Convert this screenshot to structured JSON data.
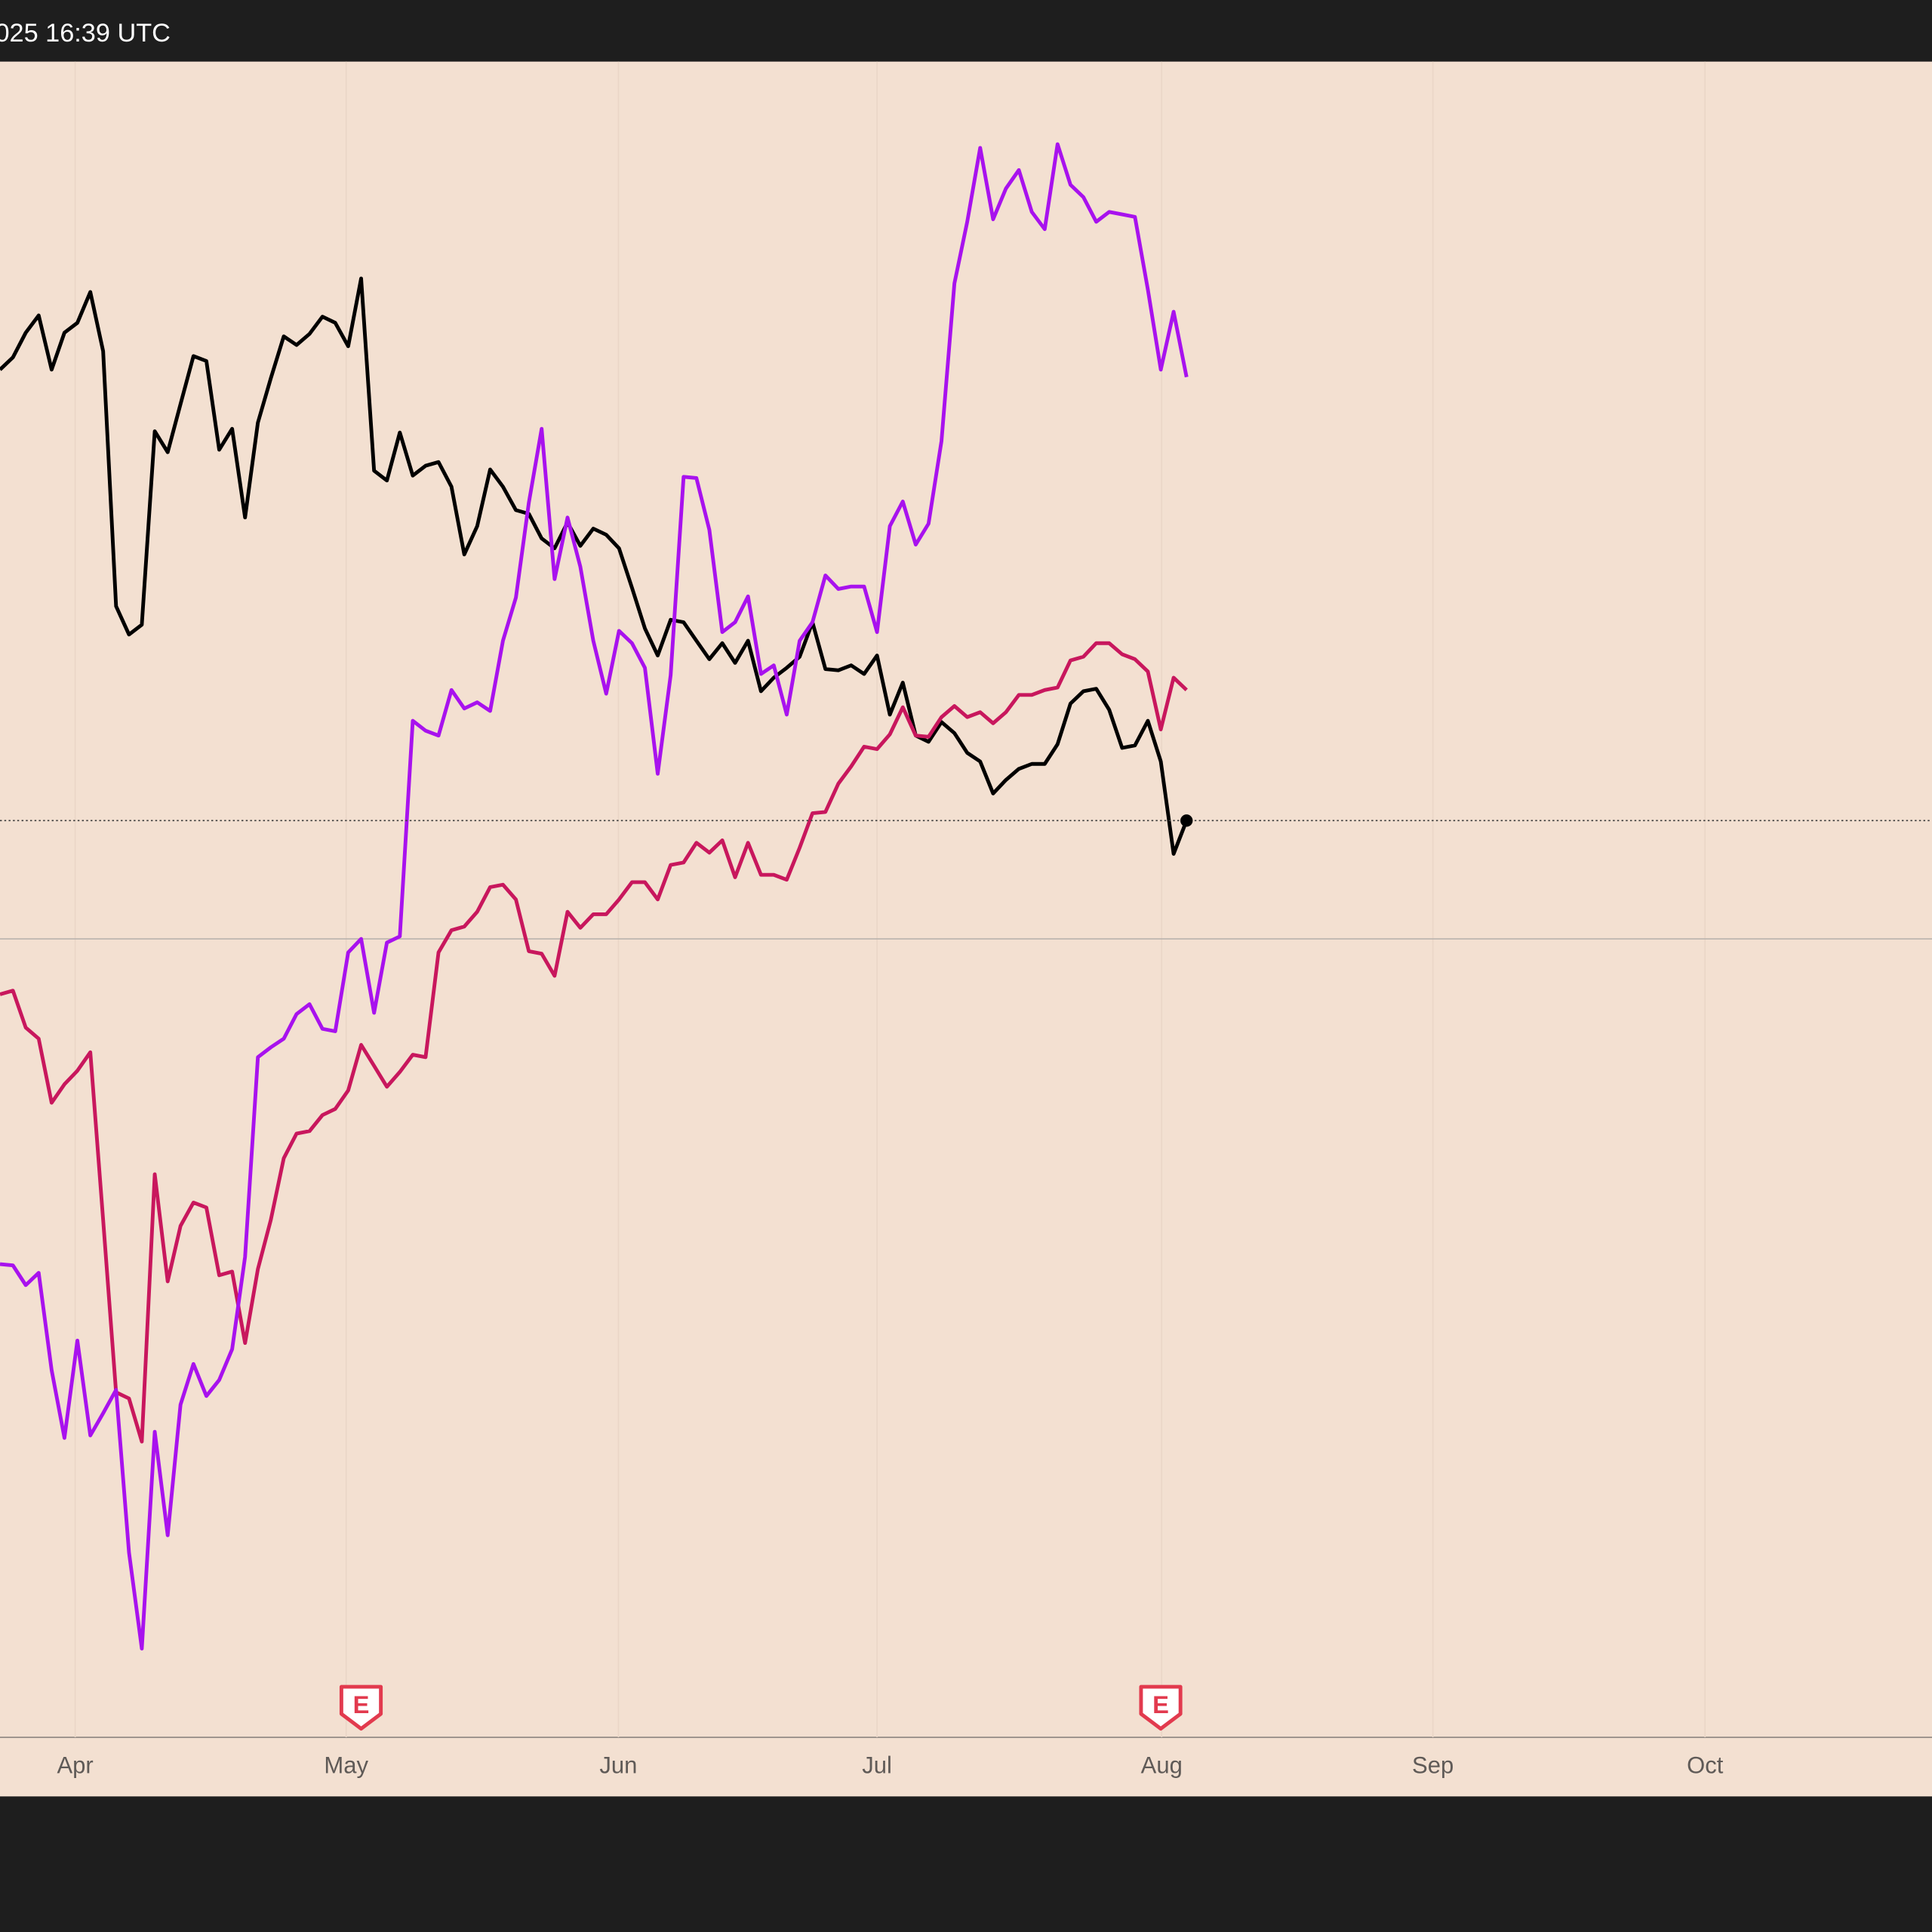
{
  "header": {
    "text": "025 16:39 UTC"
  },
  "chart_data": {
    "type": "line",
    "xlim": [
      0,
      149.8
    ],
    "ylim": [
      -64.8,
      71.2
    ],
    "xticks": [
      {
        "value": 5.83,
        "label": "Apr"
      },
      {
        "value": 26.84,
        "label": "May"
      },
      {
        "value": 47.95,
        "label": "Jun"
      },
      {
        "value": 68.0,
        "label": "Jul"
      },
      {
        "value": 90.07,
        "label": "Aug"
      },
      {
        "value": 111.1,
        "label": "Sep"
      },
      {
        "value": 132.2,
        "label": "Oct"
      }
    ],
    "grid": true,
    "baseline": 0,
    "events": [
      {
        "x": 28,
        "label": "E"
      },
      {
        "x": 90,
        "label": "E"
      }
    ],
    "series": [
      {
        "color": "#000000",
        "values": [
          46.2,
          47.2,
          49.2,
          50.6,
          46.2,
          49.2,
          50,
          52.5,
          47.7,
          27,
          24.7,
          25.5,
          41.2,
          39.5,
          43.4,
          47.3,
          46.9,
          39.7,
          41.4,
          34.2,
          41.9,
          45.5,
          48.9,
          48.2,
          49.1,
          50.5,
          50,
          48.1,
          53.6,
          38,
          37.2,
          41.1,
          37.6,
          38.4,
          38.7,
          36.7,
          31.2,
          33.5,
          38.1,
          36.7,
          34.8,
          34.5,
          32.5,
          31.7,
          33.8,
          31.9,
          33.3,
          32.8,
          31.7,
          28.5,
          25.2,
          23,
          25.9,
          25.7,
          24.2,
          22.7,
          24,
          22.4,
          24.2,
          20.1,
          21.2,
          22,
          22.9,
          25.7,
          21.9,
          21.8,
          22.2,
          21.5,
          23,
          18.2,
          20.8,
          16.5,
          16,
          17.6,
          16.7,
          15.1,
          14.4,
          11.8,
          12.9,
          13.8,
          14.2,
          14.2,
          15.8,
          19.1,
          20.1,
          20.3,
          18.6,
          15.5,
          15.7,
          17.7,
          14.4,
          6.9,
          9.6
        ]
      },
      {
        "color": "#c8175d",
        "values": [
          -4.5,
          -4.2,
          -7.2,
          -8.1,
          -13.3,
          -11.8,
          -10.7,
          -9.2,
          -22.8,
          -36.8,
          -37.3,
          -40.8,
          -19.1,
          -27.8,
          -23.3,
          -21.4,
          -21.8,
          -27.3,
          -27,
          -32.8,
          -26.8,
          -22.8,
          -17.8,
          -15.8,
          -15.6,
          -14.3,
          -13.8,
          -12.3,
          -8.6,
          -10.3,
          -12,
          -10.8,
          -9.4,
          -9.6,
          -1.1,
          0.7,
          1,
          2.2,
          4.2,
          4.4,
          3.2,
          -1,
          -1.2,
          -3,
          2.2,
          0.9,
          2,
          2,
          3.2,
          4.6,
          4.6,
          3.2,
          6,
          6.2,
          7.8,
          7,
          8,
          5,
          7.8,
          5.2,
          5.2,
          4.8,
          7.4,
          10.2,
          10.3,
          12.6,
          14,
          15.6,
          15.4,
          16.6,
          18.8,
          16.5,
          16.4,
          18,
          18.9,
          18,
          18.4,
          17.5,
          18.4,
          19.8,
          19.8,
          20.2,
          20.4,
          22.6,
          22.9,
          24,
          24,
          23.1,
          22.7,
          21.7,
          17,
          21.2,
          20.2
        ]
      },
      {
        "color": "#a812ee",
        "values": [
          -26.4,
          -26.5,
          -28.1,
          -27.1,
          -35,
          -40.5,
          -32.6,
          -40.3,
          -38.5,
          -36.6,
          -49.8,
          -57.6,
          -40,
          -48.4,
          -37.8,
          -34.5,
          -37.1,
          -35.8,
          -33.3,
          -25.8,
          -9.6,
          -8.8,
          -8.1,
          -6.1,
          -5.3,
          -7.3,
          -7.5,
          -1.1,
          0,
          -6,
          -0.3,
          0.2,
          17.7,
          16.9,
          16.5,
          20.2,
          18.7,
          19.2,
          18.5,
          24.2,
          27.7,
          35.4,
          41.4,
          29.2,
          34.2,
          30.2,
          24.2,
          19.9,
          25,
          24,
          22,
          13.4,
          21.4,
          37.5,
          37.4,
          33.2,
          24.9,
          25.7,
          27.8,
          21.5,
          22.2,
          18.2,
          24.2,
          25.7,
          29.5,
          28.4,
          28.6,
          28.6,
          24.9,
          33.5,
          35.5,
          32,
          33.7,
          40.4,
          53.2,
          58.2,
          64.2,
          58.4,
          60.9,
          62.4,
          59,
          57.6,
          64.5,
          61.2,
          60.2,
          58.2,
          59,
          58.8,
          58.6,
          52.7,
          46.2,
          50.9,
          45.6
        ]
      }
    ]
  }
}
